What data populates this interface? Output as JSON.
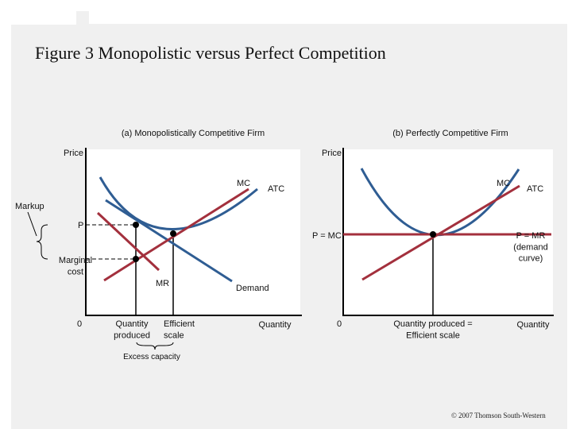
{
  "figure_title": "Figure 3 Monopolistic versus Perfect Competition",
  "copyright": "© 2007 Thomson South-Western",
  "colors": {
    "curve_blue": "#2f5d93",
    "curve_red": "#a3303d",
    "axis": "#000000",
    "panel_bg": "#ffffff",
    "slide_bg": "#f0f0f0"
  },
  "panel_a": {
    "title": "(a) Monopolistically Competitive Firm",
    "y_axis_label": "Price",
    "x_axis_label": "Quantity",
    "origin_label": "0",
    "curve_labels": {
      "mc": "MC",
      "atc": "ATC",
      "mr": "MR",
      "demand": "Demand"
    },
    "price_label": "P",
    "markup_label": "Markup",
    "marginal_cost_label": "Marginal\ncost",
    "quantity_produced_label": "Quantity\nproduced",
    "efficient_scale_label": "Efficient\nscale",
    "excess_capacity_label": "Excess capacity"
  },
  "panel_b": {
    "title": "(b) Perfectly Competitive Firm",
    "y_axis_label": "Price",
    "x_axis_label": "Quantity",
    "origin_label": "0",
    "curve_labels": {
      "mc": "MC",
      "atc": "ATC"
    },
    "price_line_label": "P = MC",
    "demand_label": "P = MR\n(demand\ncurve)",
    "quantity_label": "Quantity produced =\nEfficient scale"
  }
}
